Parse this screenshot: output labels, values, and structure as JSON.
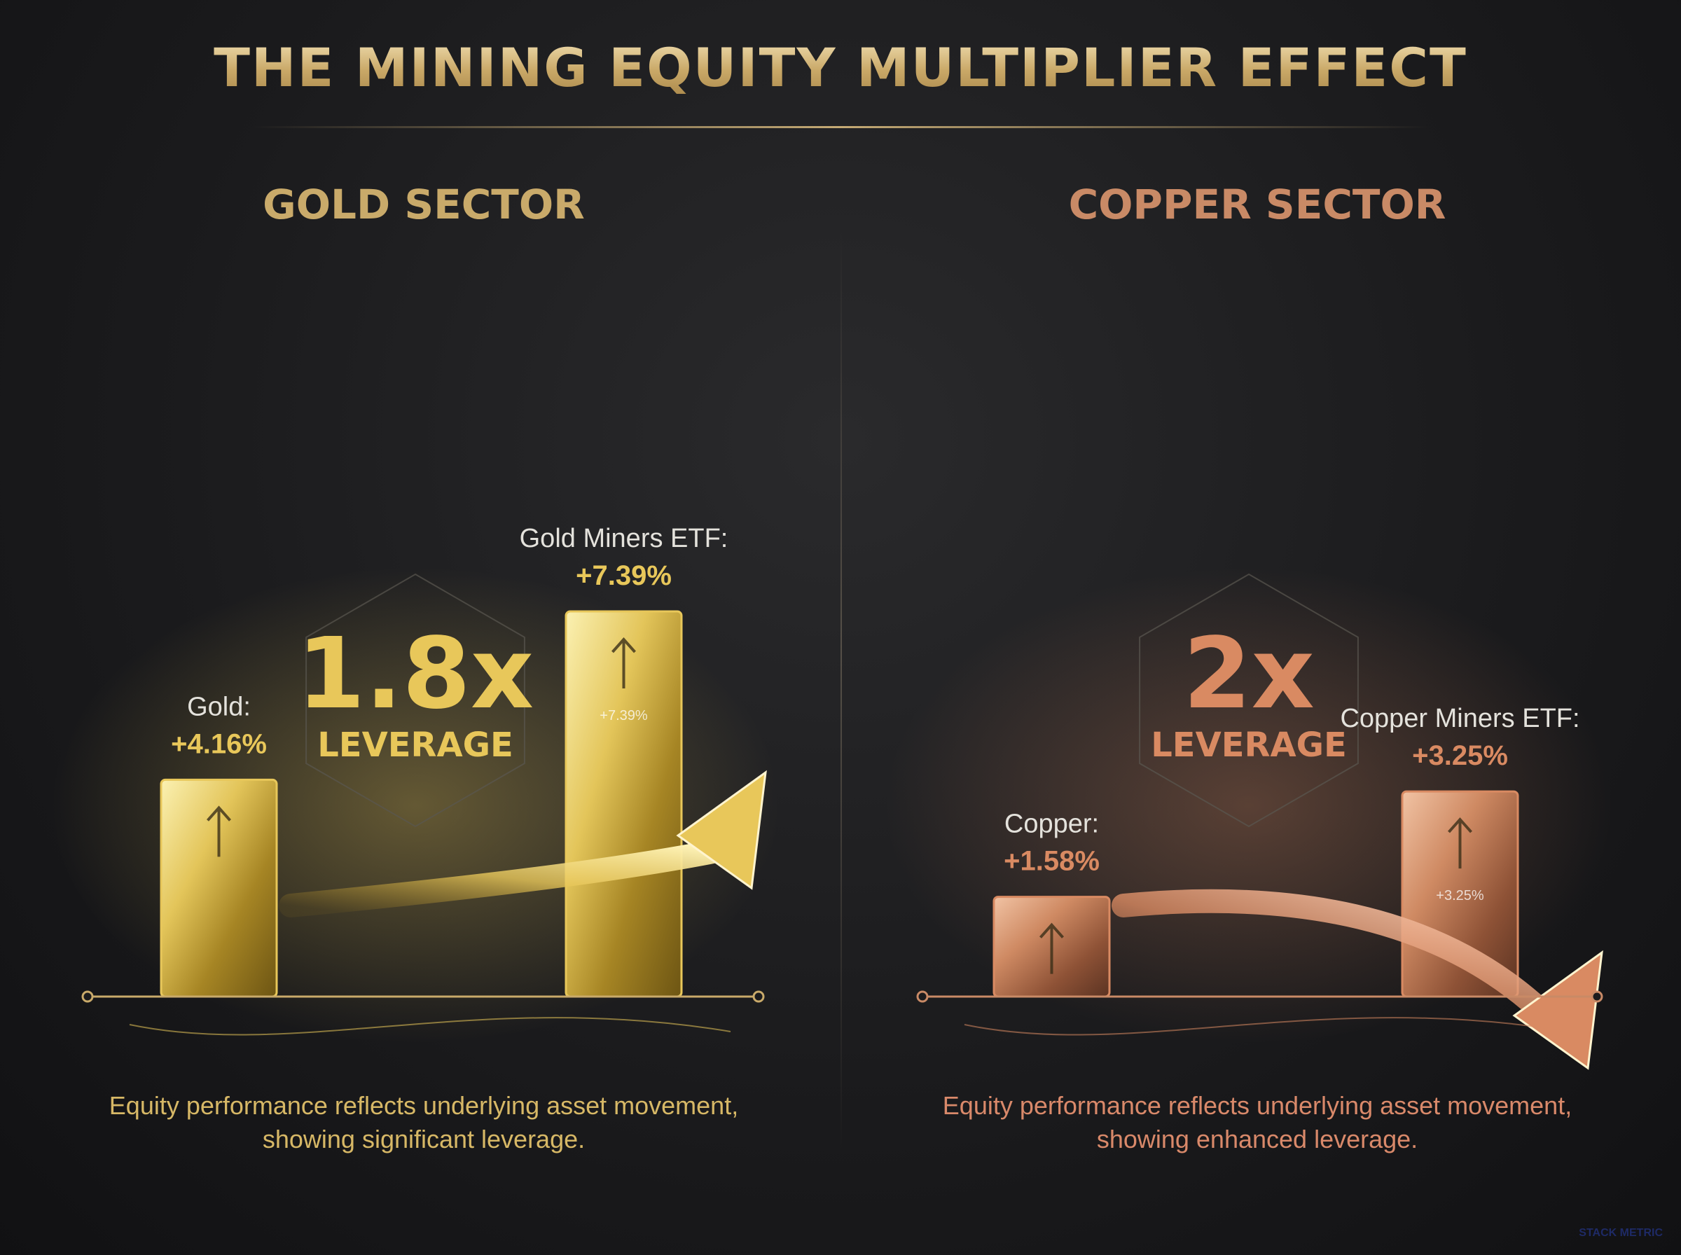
{
  "title": "THE MINING EQUITY MULTIPLIER EFFECT",
  "colors": {
    "gold_accent": "#e8c75a",
    "copper_accent": "#d98a62",
    "background": "#1b1b1d"
  },
  "watermark": "STACK METRIC",
  "chart_data": [
    {
      "type": "bar",
      "title": "GOLD SECTOR",
      "categories": [
        "Gold:",
        "Gold Miners ETF:"
      ],
      "values": [
        4.16,
        7.39
      ],
      "value_labels": [
        "+4.16%",
        "+7.39%"
      ],
      "inner_label": "+7.39%",
      "multiplier": "1.8x",
      "multiplier_caption": "LEVERAGE",
      "note": "Equity performance reflects underlying asset movement, showing significant leverage."
    },
    {
      "type": "bar",
      "title": "COPPER SECTOR",
      "categories": [
        "Copper:",
        "Copper Miners ETF:"
      ],
      "values": [
        1.58,
        3.25
      ],
      "value_labels": [
        "+1.58%",
        "+3.25%"
      ],
      "inner_label": "+3.25%",
      "multiplier": "2x",
      "multiplier_caption": "LEVERAGE",
      "note": "Equity performance reflects underlying asset movement, showing enhanced leverage."
    }
  ]
}
